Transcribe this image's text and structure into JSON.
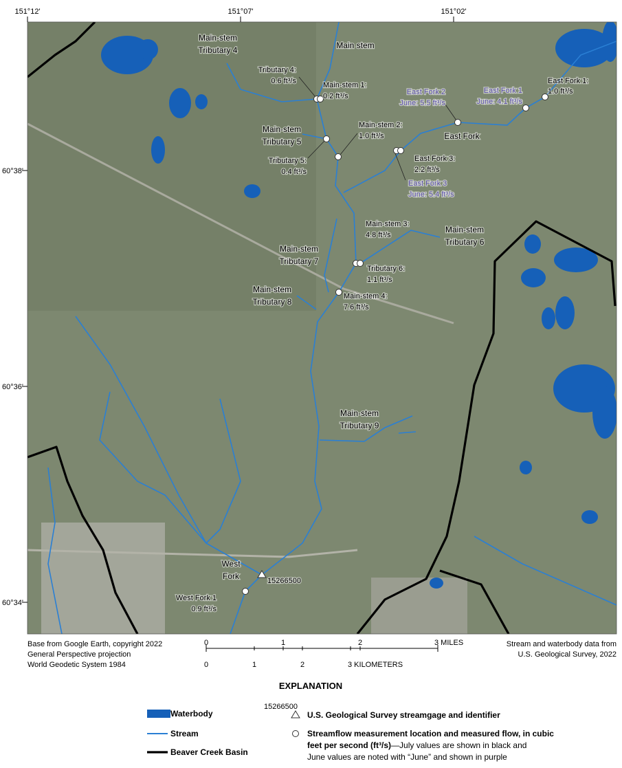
{
  "map": {
    "longitude_labels": [
      "151°12'",
      "151°07'",
      "151°02'"
    ],
    "latitude_labels": [
      "60°38'",
      "60°36'",
      "60°34'"
    ],
    "feature_labels": [
      [
        "Main stem"
      ],
      [
        "Main-stem",
        "Tributary 4"
      ],
      [
        "East Fork"
      ],
      [
        "Main-stem",
        "Tributary 5"
      ],
      [
        "Main-stem",
        "Tributary 6"
      ],
      [
        "Main-stem",
        "Tributary 7"
      ],
      [
        "Main-stem",
        "Tributary 8"
      ],
      [
        "Main-stem",
        "Tributary 9"
      ],
      [
        "West",
        "Fork"
      ]
    ],
    "measurement_labels": [
      [
        "Tributary 4:",
        "0.6 ft³/s"
      ],
      [
        "Main-stem 1:",
        "0.2 ft³/s"
      ],
      [
        "East Fork 1:",
        "1.0 ft³/s"
      ],
      [
        "Main-stem 2:",
        "1.0 ft³/s"
      ],
      [
        "Tributary 5:",
        "0.4 ft³/s"
      ],
      [
        "East Fork 3:",
        "2.2 ft³/s"
      ],
      [
        "Main-stem 3:",
        "4.8 ft³/s"
      ],
      [
        "Tributary 6:",
        "1.1 ft³/s"
      ],
      [
        "Main-stem 4:",
        "7.6 ft³/s"
      ],
      [
        "West Fork 1",
        "0.9 ft³/s"
      ]
    ],
    "june_labels": [
      [
        "East Fork 2",
        "June: 5.5 ft³/s"
      ],
      [
        "East Fork 1",
        "June: 4.1 ft³/s"
      ],
      [
        "East Fork 3",
        "June: 5.4 ft³/s"
      ]
    ],
    "streamgage_label": "15266500"
  },
  "credits": {
    "left": [
      "Base from Google Earth, copyright 2022",
      "General Perspective projection",
      "World Geodetic System 1984"
    ],
    "right": [
      "Stream and waterbody data from",
      "U.S. Geological Survey, 2022"
    ]
  },
  "scale_bar": {
    "miles": [
      0,
      1,
      2,
      "3 MILES"
    ],
    "kilometers": [
      0,
      1,
      2,
      "3 KILOMETERS"
    ]
  },
  "explanation": {
    "title": "EXPLANATION",
    "waterbody": "Waterbody",
    "stream": "Stream",
    "basin": "Beaver Creek Basin",
    "streamgage_id": "15266500",
    "streamgage": "U.S. Geological Survey streamgage and identifier",
    "measurement": [
      "Streamflow measurement location and measured flow, in cubic",
      "feet per second (ft³/s)",
      "—July values are shown in black and",
      "June values are noted with “June” and shown in purple"
    ]
  }
}
